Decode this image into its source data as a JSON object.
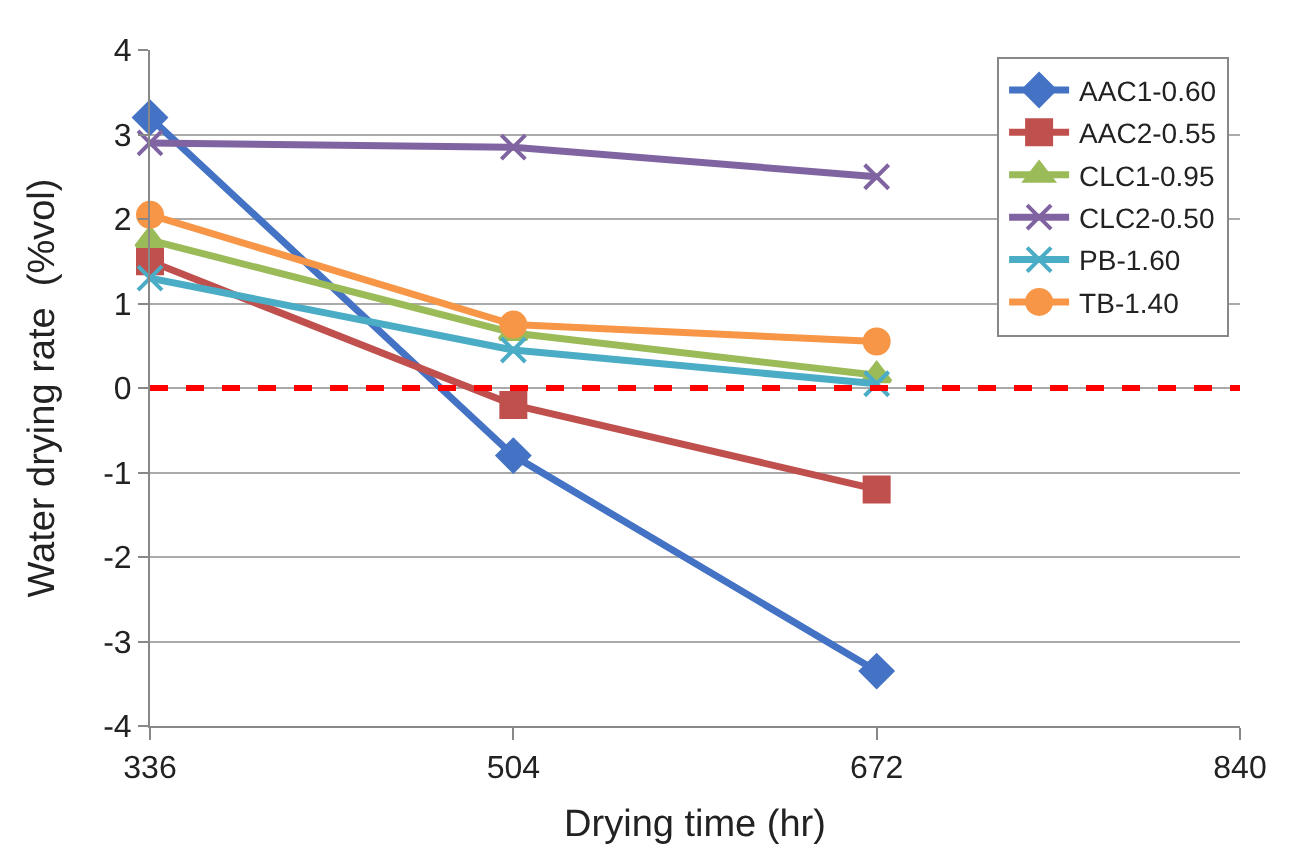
{
  "chart_data": {
    "type": "line",
    "xlabel": "Drying time (hr)",
    "ylabel": "Water drying rate  (%vol)",
    "x": [
      336,
      504,
      672
    ],
    "series": [
      {
        "name": "AAC1-0.60",
        "color": "#4472c4",
        "marker": "diamond",
        "values": [
          3.2,
          -0.8,
          -3.35
        ]
      },
      {
        "name": "AAC2-0.55",
        "color": "#c0504d",
        "marker": "square",
        "values": [
          1.5,
          -0.2,
          -1.2
        ]
      },
      {
        "name": "CLC1-0.95",
        "color": "#9bbb59",
        "marker": "triangle",
        "values": [
          1.75,
          0.65,
          0.15
        ]
      },
      {
        "name": "CLC2-0.50",
        "color": "#8064a2",
        "marker": "cross",
        "values": [
          2.9,
          2.85,
          2.5
        ]
      },
      {
        "name": "PB-1.60",
        "color": "#4bacc6",
        "marker": "cross",
        "values": [
          1.3,
          0.45,
          0.05
        ]
      },
      {
        "name": "TB-1.40",
        "color": "#f79646",
        "marker": "circle",
        "values": [
          2.05,
          0.75,
          0.55
        ]
      }
    ],
    "xlim": [
      336,
      840
    ],
    "xticks": [
      336,
      504,
      672,
      840
    ],
    "ylim": [
      -4,
      4
    ],
    "yticks": [
      -4,
      -3,
      -2,
      -1,
      0,
      1,
      2,
      3,
      4
    ],
    "grid": "y",
    "legend": "top right",
    "line_style": "solid",
    "ref_lines": [
      {
        "axis": "y",
        "value": 0,
        "color": "#ff0000",
        "line_style": "dashed"
      }
    ]
  }
}
